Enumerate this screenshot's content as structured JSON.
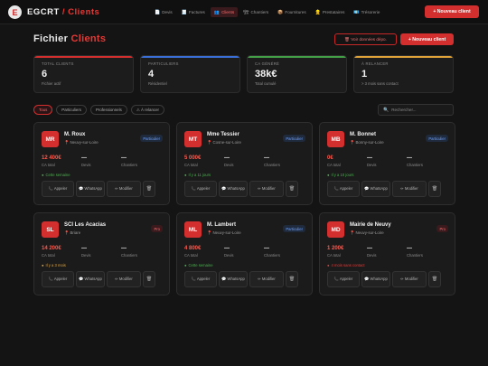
{
  "app": {
    "logo_mark": "E",
    "brand": "EGCRT",
    "brand_sep": " / ",
    "brand_section": "Clients",
    "new_client": "+ Nouveau client"
  },
  "nav": [
    {
      "icon": "📄",
      "label": "Devis"
    },
    {
      "icon": "🧾",
      "label": "Factures"
    },
    {
      "icon": "👥",
      "label": "Clients"
    },
    {
      "icon": "🏗",
      "label": "Chantiers"
    },
    {
      "icon": "📦",
      "label": "Fournitures"
    },
    {
      "icon": "👷",
      "label": "Prestataires"
    },
    {
      "icon": "💶",
      "label": "Trésorerie"
    }
  ],
  "header": {
    "title_a": "Fichier",
    "title_b": " Clients",
    "secondary_button": "🗑 Voir données dépo.",
    "primary_button": "+ Nouveau client"
  },
  "stats": [
    {
      "label": "TOTAL CLIENTS",
      "value": "6",
      "sub": "Fichier actif",
      "color": "#d32f2f"
    },
    {
      "label": "PARTICULIERS",
      "value": "4",
      "sub": "Résidentiel",
      "color": "#3b6fd8"
    },
    {
      "label": "CA GÉNÉRÉ",
      "value": "38k€",
      "sub": "Total cumulé",
      "color": "#43a047"
    },
    {
      "label": "À RELANCER",
      "value": "1",
      "sub": "> 3 mois sans contact",
      "color": "#e0a33a"
    }
  ],
  "filters": [
    "Tous",
    "Particuliers",
    "Professionnels",
    "⚠ À relancer"
  ],
  "search": {
    "placeholder": "Rechercher..."
  },
  "card_labels": {
    "ca": "CA total",
    "devis": "Devis",
    "chantiers": "Chantiers",
    "call": "📞 Appeler",
    "whatsapp": "💬 WhatsApp",
    "modify": "✏ Modifier",
    "delete": "🗑"
  },
  "clients": [
    {
      "initials": "MR",
      "name": "M. Roux",
      "location": "Neuvy-sur-Loire",
      "type": "Particulier",
      "kind": "part",
      "ca": "12 400€",
      "devis": "—",
      "chantiers": "—",
      "last": "Cette semaine",
      "last_status": "green"
    },
    {
      "initials": "MT",
      "name": "Mme Tessier",
      "location": "Cosne-sur-Loire",
      "type": "Particulier",
      "kind": "part",
      "ca": "5 000€",
      "devis": "—",
      "chantiers": "—",
      "last": "Il y a 11 jours",
      "last_status": "green"
    },
    {
      "initials": "MB",
      "name": "M. Bonnet",
      "location": "Bonny-sur-Loire",
      "type": "Particulier",
      "kind": "part",
      "ca": "0€",
      "devis": "—",
      "chantiers": "—",
      "last": "Il y a 10 jours",
      "last_status": "green"
    },
    {
      "initials": "SL",
      "name": "SCI Les Acacias",
      "location": "Briare",
      "type": "Pro",
      "kind": "pro",
      "ca": "14 200€",
      "devis": "—",
      "chantiers": "—",
      "last": "Il y a 3 mois",
      "last_status": "amber"
    },
    {
      "initials": "ML",
      "name": "M. Lambert",
      "location": "Neuvy-sur-Loire",
      "type": "Particulier",
      "kind": "part",
      "ca": "4 800€",
      "devis": "—",
      "chantiers": "—",
      "last": "Cette semaine",
      "last_status": "green"
    },
    {
      "initials": "MD",
      "name": "Mairie de Neuvy",
      "location": "Neuvy-sur-Loire",
      "type": "Pro",
      "kind": "pro",
      "ca": "1 200€",
      "devis": "—",
      "chantiers": "—",
      "last": "4 mois sans contact",
      "last_status": "red"
    }
  ]
}
